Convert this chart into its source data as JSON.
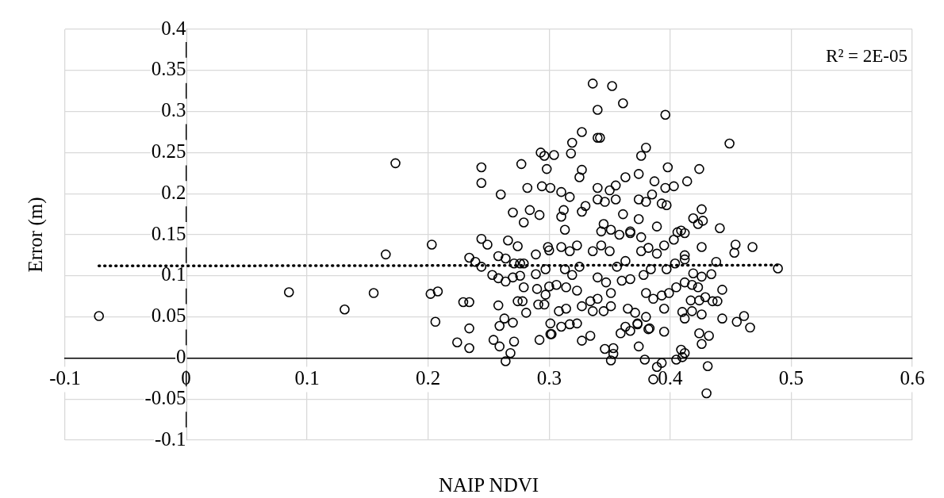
{
  "chart_data": {
    "type": "scatter",
    "xlabel": "NAIP NDVI",
    "ylabel": "Error (m)",
    "annotations": [
      "R² = 2E-05"
    ],
    "xlim": [
      -0.1,
      0.6
    ],
    "xticks": [
      -0.1,
      0,
      0.1,
      0.2,
      0.3,
      0.4,
      0.5,
      0.6
    ],
    "ylim": [
      -0.1,
      0.4
    ],
    "yticks": [
      -0.1,
      -0.05,
      0,
      0.05,
      0.1,
      0.15,
      0.2,
      0.25,
      0.3,
      0.35,
      0.4
    ],
    "grid": true,
    "marker": "circle",
    "series": [
      {
        "type": "scatter",
        "color": "#000000",
        "x": [
          -0.072,
          0.085,
          0.131,
          0.155,
          0.165,
          0.173,
          0.203,
          0.202,
          0.208,
          0.206,
          0.224,
          0.229,
          0.234,
          0.234,
          0.234,
          0.234,
          0.336,
          0.352,
          0.361,
          0.34,
          0.396,
          0.327,
          0.34,
          0.342,
          0.319,
          0.38,
          0.376,
          0.293,
          0.296,
          0.304,
          0.318,
          0.244,
          0.244,
          0.277,
          0.298,
          0.327,
          0.325,
          0.398,
          0.374,
          0.363,
          0.26,
          0.282,
          0.294,
          0.301,
          0.31,
          0.317,
          0.34,
          0.355,
          0.35,
          0.387,
          0.396,
          0.403,
          0.385,
          0.355,
          0.34,
          0.346,
          0.374,
          0.38,
          0.393,
          0.397,
          0.27,
          0.279,
          0.284,
          0.292,
          0.312,
          0.31,
          0.33,
          0.327,
          0.361,
          0.374,
          0.389,
          0.313,
          0.449,
          0.424,
          0.414,
          0.426,
          0.419,
          0.427,
          0.423,
          0.441,
          0.409,
          0.412,
          0.426,
          0.454,
          0.453,
          0.468,
          0.438,
          0.489,
          0.412,
          0.412,
          0.434,
          0.419,
          0.426,
          0.412,
          0.418,
          0.423,
          0.443,
          0.417,
          0.424,
          0.435,
          0.439,
          0.429,
          0.41,
          0.418,
          0.426,
          0.412,
          0.443,
          0.455,
          0.461,
          0.466,
          0.424,
          0.432,
          0.426,
          0.409,
          0.412,
          0.41,
          0.431,
          0.43,
          0.254,
          0.259,
          0.271,
          0.268,
          0.264,
          0.259,
          0.27,
          0.292,
          0.302,
          0.327,
          0.334,
          0.346,
          0.353,
          0.353,
          0.351,
          0.374,
          0.379,
          0.389,
          0.393,
          0.386,
          0.405,
          0.359,
          0.363,
          0.367,
          0.373,
          0.382,
          0.395,
          0.244,
          0.249,
          0.266,
          0.274,
          0.239,
          0.244,
          0.258,
          0.264,
          0.289,
          0.253,
          0.258,
          0.264,
          0.271,
          0.276,
          0.279,
          0.27,
          0.276,
          0.279,
          0.258,
          0.274,
          0.278,
          0.281,
          0.263,
          0.289,
          0.297,
          0.299,
          0.3,
          0.29,
          0.297,
          0.3,
          0.291,
          0.296,
          0.301,
          0.301,
          0.31,
          0.317,
          0.323,
          0.313,
          0.319,
          0.325,
          0.306,
          0.314,
          0.323,
          0.308,
          0.314,
          0.31,
          0.317,
          0.323,
          0.327,
          0.334,
          0.34,
          0.336,
          0.343,
          0.35,
          0.34,
          0.347,
          0.351,
          0.336,
          0.345,
          0.351,
          0.358,
          0.367,
          0.376,
          0.356,
          0.363,
          0.367,
          0.36,
          0.365,
          0.371,
          0.38,
          0.373,
          0.383,
          0.376,
          0.382,
          0.389,
          0.384,
          0.378,
          0.38,
          0.386,
          0.393,
          0.395,
          0.403,
          0.406,
          0.397,
          0.404,
          0.399,
          0.405,
          0.395,
          0.345,
          0.351,
          0.343,
          0.367
        ],
        "values": [
          0.051,
          0.08,
          0.059,
          0.079,
          0.126,
          0.237,
          0.138,
          0.078,
          0.081,
          0.044,
          0.019,
          0.068,
          0.068,
          0.036,
          0.012,
          0.122,
          0.334,
          0.331,
          0.31,
          0.302,
          0.296,
          0.275,
          0.268,
          0.268,
          0.262,
          0.256,
          0.246,
          0.25,
          0.246,
          0.247,
          0.249,
          0.232,
          0.213,
          0.236,
          0.23,
          0.229,
          0.22,
          0.232,
          0.224,
          0.22,
          0.199,
          0.207,
          0.209,
          0.207,
          0.202,
          0.196,
          0.207,
          0.21,
          0.204,
          0.215,
          0.207,
          0.209,
          0.199,
          0.193,
          0.193,
          0.19,
          0.193,
          0.19,
          0.188,
          0.186,
          0.177,
          0.165,
          0.18,
          0.174,
          0.18,
          0.172,
          0.185,
          0.178,
          0.175,
          0.169,
          0.16,
          0.156,
          0.261,
          0.23,
          0.215,
          0.181,
          0.17,
          0.167,
          0.163,
          0.158,
          0.155,
          0.152,
          0.135,
          0.138,
          0.128,
          0.135,
          0.117,
          0.109,
          0.125,
          0.12,
          0.102,
          0.103,
          0.099,
          0.092,
          0.089,
          0.086,
          0.083,
          0.07,
          0.07,
          0.069,
          0.069,
          0.074,
          0.056,
          0.057,
          0.053,
          0.048,
          0.048,
          0.044,
          0.051,
          0.037,
          0.03,
          0.027,
          0.017,
          0.01,
          0.006,
          0.001,
          -0.01,
          -0.043,
          0.022,
          0.014,
          0.02,
          0.006,
          -0.004,
          0.039,
          0.043,
          0.022,
          0.029,
          0.021,
          0.027,
          0.011,
          0.012,
          0.005,
          -0.003,
          0.014,
          -0.002,
          -0.011,
          -0.006,
          -0.026,
          -0.002,
          0.03,
          0.038,
          0.033,
          0.041,
          0.035,
          0.032,
          0.145,
          0.138,
          0.143,
          0.136,
          0.117,
          0.111,
          0.124,
          0.121,
          0.126,
          0.101,
          0.097,
          0.093,
          0.115,
          0.115,
          0.115,
          0.098,
          0.1,
          0.086,
          0.064,
          0.069,
          0.069,
          0.055,
          0.048,
          0.102,
          0.108,
          0.135,
          0.131,
          0.084,
          0.077,
          0.087,
          0.065,
          0.065,
          0.042,
          0.029,
          0.135,
          0.13,
          0.137,
          0.108,
          0.101,
          0.111,
          0.089,
          0.086,
          0.082,
          0.057,
          0.06,
          0.038,
          0.041,
          0.042,
          0.063,
          0.069,
          0.072,
          0.13,
          0.137,
          0.13,
          0.098,
          0.092,
          0.079,
          0.057,
          0.057,
          0.063,
          0.15,
          0.152,
          0.147,
          0.111,
          0.118,
          0.096,
          0.094,
          0.06,
          0.055,
          0.05,
          0.042,
          0.036,
          0.13,
          0.134,
          0.127,
          0.108,
          0.101,
          0.079,
          0.072,
          0.076,
          0.137,
          0.144,
          0.153,
          0.108,
          0.115,
          0.079,
          0.086,
          0.06,
          0.163,
          0.156,
          0.154,
          0.154
        ]
      },
      {
        "type": "line",
        "color": "#000000",
        "x": [
          -0.072,
          0.489
        ],
        "values": [
          0.112,
          0.113
        ],
        "line_style": "dotted",
        "marker": "none"
      }
    ]
  }
}
